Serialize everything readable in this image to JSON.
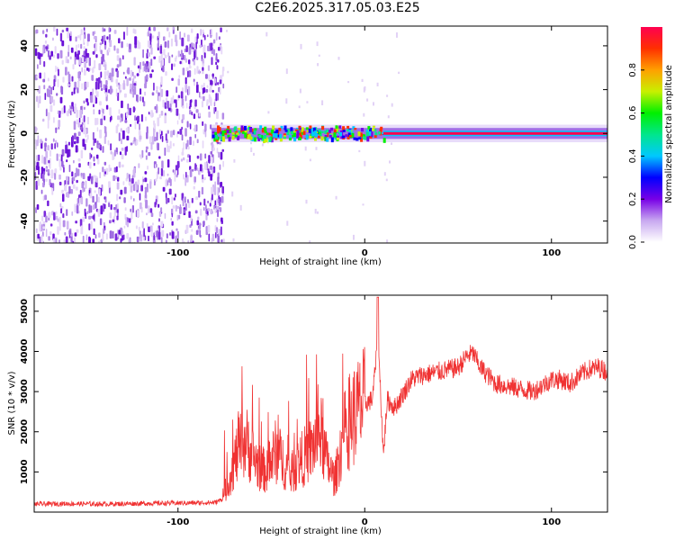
{
  "title": "C2E6.2025.317.05.03.E25",
  "chart_data": [
    {
      "type": "heatmap",
      "name": "spectrogram",
      "xlabel": "Height of straight line (km)",
      "ylabel": "Frequency (Hz)",
      "xlim": [
        -177,
        130
      ],
      "ylim": [
        -50,
        49
      ],
      "x_ticks": [
        -100,
        0,
        100
      ],
      "y_ticks": [
        -40,
        -20,
        0,
        20,
        40
      ],
      "noise_region_x": [
        -177,
        -76
      ],
      "signal_band_x": [
        -82,
        130
      ],
      "signal_band_hz": [
        -5,
        5
      ],
      "colorbar": {
        "label": "Normalized spectral amplitude",
        "range": [
          0.0,
          1.0
        ],
        "ticks": [
          0.0,
          0.2,
          0.4,
          0.6,
          0.8
        ],
        "colors": [
          "#ffffff",
          "#c8a8f0",
          "#7800e6",
          "#0000ff",
          "#00c8ff",
          "#00e68c",
          "#00f000",
          "#c8f000",
          "#ffa000",
          "#ff3000",
          "#ff0050"
        ]
      }
    },
    {
      "type": "line",
      "name": "snr",
      "xlabel": "Height of straight line (km)",
      "ylabel": "SNR (10 * v/v)",
      "xlim": [
        -177,
        130
      ],
      "ylim": [
        0,
        5400
      ],
      "x_ticks": [
        -100,
        0,
        100
      ],
      "y_ticks": [
        1000,
        2000,
        3000,
        4000,
        5000
      ],
      "color": "#f03232",
      "series": [
        {
          "name": "SNR",
          "x": [
            -177,
            -160,
            -140,
            -120,
            -100,
            -90,
            -80,
            -76,
            -72,
            -68,
            -64,
            -60,
            -56,
            -52,
            -48,
            -44,
            -40,
            -36,
            -32,
            -28,
            -24,
            -20,
            -16,
            -12,
            -8,
            -4,
            0,
            4,
            7,
            8,
            10,
            12,
            16,
            20,
            25,
            30,
            40,
            50,
            55,
            58,
            62,
            66,
            70,
            80,
            90,
            100,
            105,
            110,
            115,
            120,
            125,
            130
          ],
          "values": [
            200,
            210,
            200,
            215,
            225,
            230,
            240,
            330,
            900,
            1500,
            1800,
            1400,
            1100,
            1000,
            1500,
            1300,
            900,
            1200,
            1400,
            1600,
            2000,
            1200,
            800,
            1800,
            2300,
            2500,
            2700,
            2800,
            4200,
            3500,
            1400,
            2800,
            2600,
            2900,
            3300,
            3400,
            3500,
            3600,
            3900,
            3950,
            3600,
            3400,
            3200,
            3100,
            3000,
            3300,
            3300,
            3200,
            3400,
            3550,
            3600,
            3500
          ]
        }
      ]
    }
  ]
}
